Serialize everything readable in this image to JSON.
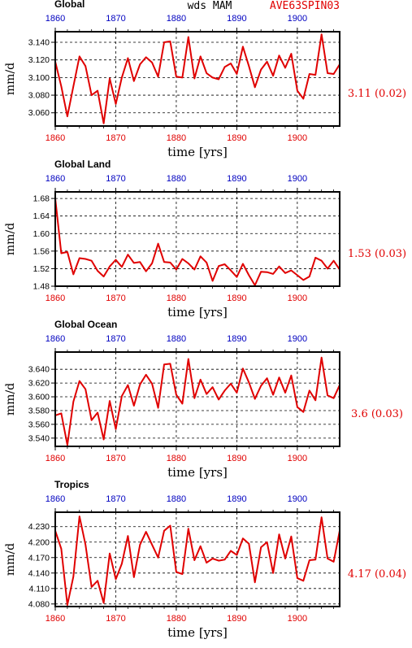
{
  "header": {
    "center_label": "wds  MAM",
    "right_label": "AVE63SPIN03"
  },
  "colors": {
    "line": "#e00000",
    "bottom_ticks": "#e00000",
    "top_ticks": "#0000c0",
    "grid": "#000000"
  },
  "chart_data": [
    {
      "type": "line",
      "title": "Global",
      "xlabel": "time [yrs]",
      "ylabel": "mm/d",
      "annotation": "3.11 (0.02)",
      "xlim": [
        1860,
        1907
      ],
      "ylim": [
        3.045,
        3.152
      ],
      "xticks": [
        "1860",
        "1870",
        "1880",
        "1890",
        "1900"
      ],
      "yticks": [
        "3.060",
        "3.080",
        "3.100",
        "3.120",
        "3.140"
      ],
      "grid": true,
      "x": [
        1860,
        1861,
        1862,
        1863,
        1864,
        1865,
        1866,
        1867,
        1868,
        1869,
        1870,
        1871,
        1872,
        1873,
        1874,
        1875,
        1876,
        1877,
        1878,
        1879,
        1880,
        1881,
        1882,
        1883,
        1884,
        1885,
        1886,
        1887,
        1888,
        1889,
        1890,
        1891,
        1892,
        1893,
        1894,
        1895,
        1896,
        1897,
        1898,
        1899,
        1900,
        1901,
        1902,
        1903,
        1904,
        1905,
        1906,
        1907
      ],
      "y": [
        3.118,
        3.09,
        3.056,
        3.09,
        3.124,
        3.113,
        3.08,
        3.085,
        3.048,
        3.099,
        3.07,
        3.1,
        3.122,
        3.096,
        3.115,
        3.123,
        3.117,
        3.101,
        3.14,
        3.141,
        3.101,
        3.1,
        3.146,
        3.099,
        3.124,
        3.105,
        3.1,
        3.098,
        3.112,
        3.116,
        3.104,
        3.135,
        3.113,
        3.089,
        3.109,
        3.118,
        3.102,
        3.125,
        3.111,
        3.127,
        3.085,
        3.076,
        3.104,
        3.103,
        3.149,
        3.105,
        3.104,
        3.115
      ]
    },
    {
      "type": "line",
      "title": "Global Land",
      "xlabel": "time [yrs]",
      "ylabel": "mm/d",
      "annotation": "1.53 (0.03)",
      "xlim": [
        1860,
        1907
      ],
      "ylim": [
        1.48,
        1.695
      ],
      "xticks": [
        "1860",
        "1870",
        "1880",
        "1890",
        "1900"
      ],
      "yticks": [
        "1.48",
        "1.52",
        "1.56",
        "1.60",
        "1.64",
        "1.68"
      ],
      "grid": true,
      "x": [
        1860,
        1861,
        1862,
        1863,
        1864,
        1865,
        1866,
        1867,
        1868,
        1869,
        1870,
        1871,
        1872,
        1873,
        1874,
        1875,
        1876,
        1877,
        1878,
        1879,
        1880,
        1881,
        1882,
        1883,
        1884,
        1885,
        1886,
        1887,
        1888,
        1889,
        1890,
        1891,
        1892,
        1893,
        1894,
        1895,
        1896,
        1897,
        1898,
        1899,
        1900,
        1901,
        1902,
        1903,
        1904,
        1905,
        1906,
        1907
      ],
      "y": [
        1.68,
        1.555,
        1.558,
        1.507,
        1.544,
        1.542,
        1.538,
        1.515,
        1.502,
        1.525,
        1.54,
        1.524,
        1.552,
        1.533,
        1.535,
        1.514,
        1.532,
        1.577,
        1.535,
        1.534,
        1.518,
        1.542,
        1.532,
        1.518,
        1.548,
        1.534,
        1.492,
        1.526,
        1.53,
        1.516,
        1.501,
        1.531,
        1.505,
        1.482,
        1.513,
        1.512,
        1.508,
        1.525,
        1.51,
        1.516,
        1.505,
        1.494,
        1.502,
        1.545,
        1.538,
        1.52,
        1.538,
        1.518
      ]
    },
    {
      "type": "line",
      "title": "Global Ocean",
      "xlabel": "time [yrs]",
      "ylabel": "mm/d",
      "annotation": "3.6 (0.03)",
      "xlim": [
        1860,
        1907
      ],
      "ylim": [
        3.528,
        3.665
      ],
      "xticks": [
        "1860",
        "1870",
        "1880",
        "1890",
        "1900"
      ],
      "yticks": [
        "3.540",
        "3.560",
        "3.580",
        "3.600",
        "3.620",
        "3.640"
      ],
      "grid": true,
      "x": [
        1860,
        1861,
        1862,
        1863,
        1864,
        1865,
        1866,
        1867,
        1868,
        1869,
        1870,
        1871,
        1872,
        1873,
        1874,
        1875,
        1876,
        1877,
        1878,
        1879,
        1880,
        1881,
        1882,
        1883,
        1884,
        1885,
        1886,
        1887,
        1888,
        1889,
        1890,
        1891,
        1892,
        1893,
        1894,
        1895,
        1896,
        1897,
        1898,
        1899,
        1900,
        1901,
        1902,
        1903,
        1904,
        1905,
        1906,
        1907
      ],
      "y": [
        3.573,
        3.576,
        3.53,
        3.593,
        3.623,
        3.611,
        3.566,
        3.577,
        3.538,
        3.594,
        3.553,
        3.601,
        3.617,
        3.587,
        3.618,
        3.632,
        3.619,
        3.584,
        3.647,
        3.648,
        3.603,
        3.59,
        3.655,
        3.598,
        3.625,
        3.604,
        3.614,
        3.596,
        3.609,
        3.619,
        3.606,
        3.641,
        3.621,
        3.597,
        3.616,
        3.627,
        3.603,
        3.628,
        3.606,
        3.631,
        3.585,
        3.578,
        3.609,
        3.595,
        3.657,
        3.602,
        3.598,
        3.617
      ]
    },
    {
      "type": "line",
      "title": "Tropics",
      "xlabel": "time [yrs]",
      "ylabel": "mm/d",
      "annotation": "4.17 (0.04)",
      "xlim": [
        1860,
        1907
      ],
      "ylim": [
        4.075,
        4.258
      ],
      "xticks": [
        "1860",
        "1870",
        "1880",
        "1890",
        "1900"
      ],
      "yticks": [
        "4.080",
        "4.110",
        "4.140",
        "4.170",
        "4.200",
        "4.230"
      ],
      "grid": true,
      "x": [
        1860,
        1861,
        1862,
        1863,
        1864,
        1865,
        1866,
        1867,
        1868,
        1869,
        1870,
        1871,
        1872,
        1873,
        1874,
        1875,
        1876,
        1877,
        1878,
        1879,
        1880,
        1881,
        1882,
        1883,
        1884,
        1885,
        1886,
        1887,
        1888,
        1889,
        1890,
        1891,
        1892,
        1893,
        1894,
        1895,
        1896,
        1897,
        1898,
        1899,
        1900,
        1901,
        1902,
        1903,
        1904,
        1905,
        1906,
        1907
      ],
      "y": [
        4.222,
        4.187,
        4.078,
        4.133,
        4.25,
        4.195,
        4.113,
        4.125,
        4.082,
        4.178,
        4.128,
        4.158,
        4.212,
        4.132,
        4.195,
        4.22,
        4.195,
        4.17,
        4.222,
        4.232,
        4.142,
        4.138,
        4.226,
        4.165,
        4.192,
        4.16,
        4.168,
        4.164,
        4.166,
        4.183,
        4.175,
        4.207,
        4.197,
        4.122,
        4.19,
        4.2,
        4.14,
        4.215,
        4.168,
        4.211,
        4.13,
        4.125,
        4.165,
        4.166,
        4.248,
        4.168,
        4.162,
        4.222
      ]
    }
  ]
}
